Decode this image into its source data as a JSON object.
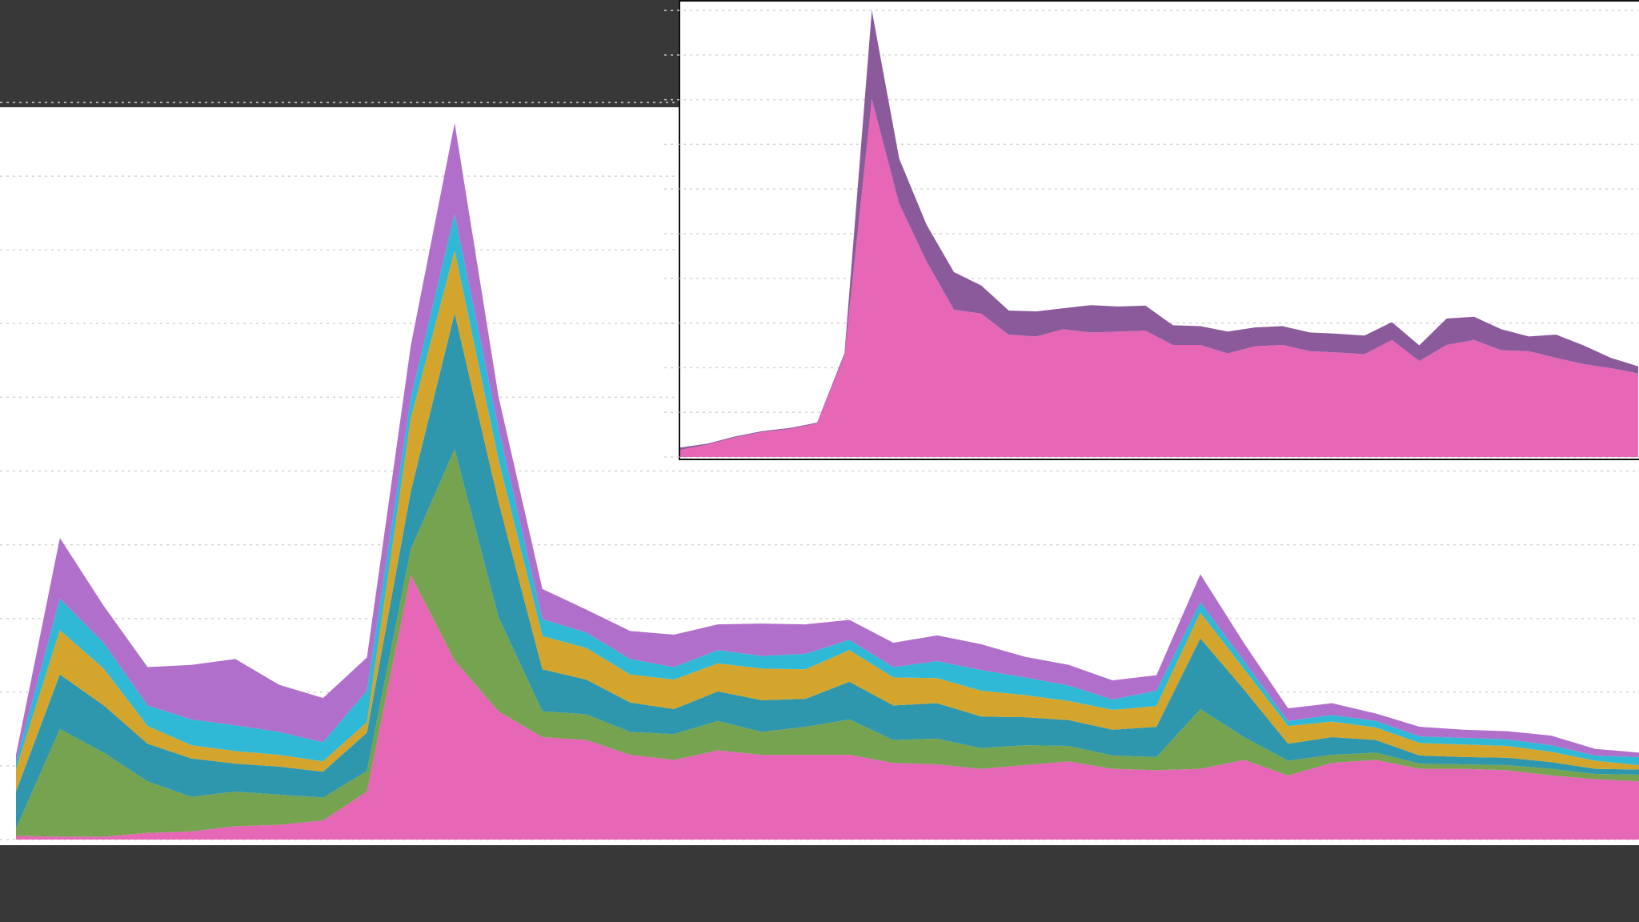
{
  "chart_data": [
    {
      "type": "area",
      "stacked": true,
      "grid": true,
      "categories": [
        null,
        null,
        null,
        null,
        null,
        null,
        null,
        null,
        null,
        null,
        null,
        null,
        null,
        null,
        null,
        null,
        null,
        null,
        null,
        null,
        null,
        null,
        null,
        null,
        null,
        null,
        null,
        null,
        null,
        null,
        null,
        null,
        null,
        null,
        null,
        null,
        null,
        null
      ],
      "ylim": [
        0,
        100
      ],
      "yticks": [
        0,
        10,
        20,
        30,
        40,
        50,
        60,
        70,
        80,
        90,
        100
      ],
      "series": [
        {
          "color": "#e667b5",
          "values": [
            0.5,
            0.4,
            0.4,
            0.9,
            1.1,
            1.8,
            2,
            2.6,
            6.5,
            35.9,
            24.3,
            17.4,
            13.9,
            13.5,
            11.5,
            10.8,
            12.1,
            11.5,
            11.5,
            11.5,
            10.4,
            10.2,
            9.6,
            10.1,
            10.6,
            9.6,
            9.4,
            9.6,
            10.8,
            8.7,
            10.4,
            10.8,
            9.6,
            9.6,
            9.4,
            8.7,
            8.2,
            7.9
          ]
        },
        {
          "color": "#76a350",
          "values": [
            1,
            14.6,
            11.4,
            7,
            4.7,
            4.7,
            4.1,
            3.1,
            2.8,
            3.5,
            28.7,
            12.8,
            3.5,
            3.5,
            3.1,
            3.5,
            4,
            3.1,
            3.8,
            4.8,
            3.1,
            3.5,
            2.8,
            2.7,
            2.1,
            1.8,
            1.8,
            8.1,
            3.1,
            2,
            1.1,
            1,
            0.7,
            0.6,
            0.7,
            0.9,
            0.7,
            0.9
          ]
        },
        {
          "color": "#2e96ad",
          "values": [
            5,
            7.4,
            6.4,
            5.1,
            5.2,
            3.8,
            3.8,
            3.5,
            5.2,
            7.8,
            18.4,
            15.6,
            5.7,
            4.7,
            4,
            3.4,
            4,
            4.3,
            3.8,
            5.1,
            4.7,
            4.8,
            4.3,
            3.8,
            3.5,
            3.5,
            4.1,
            9.6,
            6.4,
            2.3,
            2.4,
            1.7,
            1.1,
            1,
            1,
            0.9,
            0.7,
            0.7
          ]
        },
        {
          "color": "#d4a52d",
          "values": [
            3,
            6,
            5,
            2.4,
            1.8,
            1.7,
            1.6,
            1.4,
            1.4,
            9.9,
            8.5,
            5.7,
            4.5,
            4.3,
            3.8,
            4,
            3.8,
            4.3,
            4,
            4.3,
            3.8,
            3.4,
            3.5,
            3,
            2.6,
            2.7,
            2.8,
            3.5,
            2.8,
            2.4,
            2.1,
            1.7,
            1.7,
            1.7,
            1.6,
            1.4,
            1.1,
            0.6
          ]
        },
        {
          "color": "#30b9d7",
          "values": [
            1,
            4.3,
            3.5,
            2.8,
            3.5,
            3.5,
            3.1,
            2.6,
            4.3,
            2.8,
            5,
            4.3,
            2.3,
            2.1,
            2.1,
            1.7,
            1.8,
            1.7,
            2.1,
            1.4,
            1.4,
            2.3,
            2.8,
            2.4,
            2.1,
            1.4,
            2.1,
            1.4,
            1.1,
            0.7,
            0.9,
            0.9,
            0.9,
            0.9,
            0.9,
            0.9,
            0.7,
            1.1
          ]
        },
        {
          "color": "#b06fcb",
          "values": [
            1,
            8.2,
            5,
            5.2,
            7.4,
            9,
            6.4,
            6,
            4.5,
            7.1,
            12.3,
            4.3,
            4.1,
            3.1,
            3.8,
            4.4,
            3.5,
            4.4,
            4,
            2.7,
            3.3,
            3.5,
            3.5,
            2.8,
            2.8,
            2.6,
            2.1,
            3.8,
            2.4,
            1.7,
            1.6,
            1,
            1.3,
            1.1,
            1.1,
            1.3,
            0.9,
            0.6
          ]
        }
      ]
    },
    {
      "type": "area",
      "stacked": true,
      "grid": true,
      "categories": [
        null,
        null,
        null,
        null,
        null,
        null,
        null,
        null,
        null,
        null,
        null,
        null,
        null,
        null,
        null,
        null,
        null,
        null,
        null,
        null,
        null,
        null,
        null,
        null,
        null,
        null,
        null,
        null,
        null,
        null,
        null,
        null,
        null,
        null,
        null,
        null
      ],
      "ylim": [
        0,
        100
      ],
      "yticks": [
        0,
        10,
        20,
        30,
        40,
        50,
        60,
        70,
        80,
        90,
        100
      ],
      "series": [
        {
          "color": "#e667b5",
          "values": [
            1.6,
            2.8,
            4.4,
            5.6,
            6.3,
            7.5,
            22.7,
            80.1,
            56.7,
            43.8,
            33,
            32.1,
            27.4,
            27,
            28.6,
            27.9,
            28.1,
            28.3,
            25.1,
            25.1,
            23.2,
            24.8,
            25.1,
            23.7,
            23.4,
            23,
            26.2,
            21.5,
            25.1,
            26.2,
            23.9,
            23.7,
            22.2,
            20.8,
            19.9,
            18.7
          ]
        },
        {
          "color": "#8a5a9b",
          "values": [
            0.5,
            0.2,
            0.2,
            0.2,
            0.2,
            0.2,
            0.5,
            19.9,
            10.1,
            8.2,
            8.4,
            6.3,
            5.4,
            5.6,
            4.7,
            6.1,
            5.6,
            5.6,
            4.4,
            4.2,
            4.9,
            4.2,
            4.2,
            4.2,
            4.2,
            4.2,
            4,
            3.5,
            5.9,
            5.2,
            4.7,
            3.3,
            5.2,
            4.2,
            2.3,
            1.6
          ]
        }
      ]
    }
  ]
}
